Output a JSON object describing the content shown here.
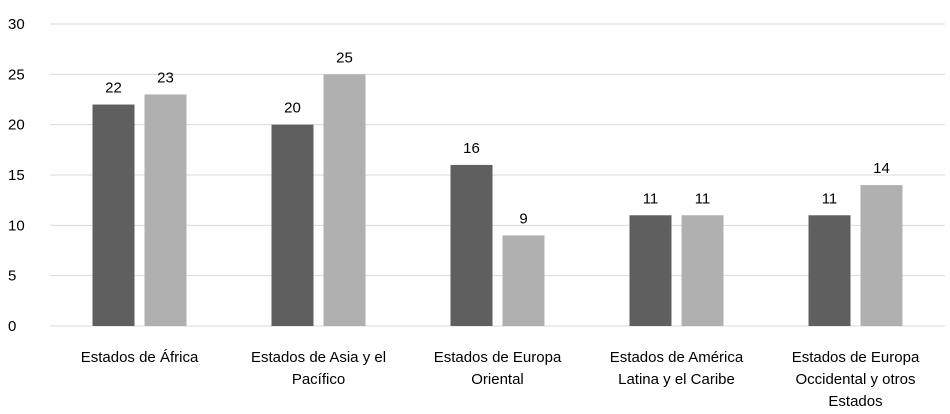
{
  "chart_data": {
    "type": "bar",
    "title": "",
    "xlabel": "",
    "ylabel": "",
    "categories": [
      [
        "Estados de África"
      ],
      [
        "Estados de Asia y el",
        "Pacífico"
      ],
      [
        "Estados de Europa",
        "Oriental"
      ],
      [
        "Estados de América",
        "Latina y el Caribe"
      ],
      [
        "Estados de Europa",
        "Occidental y otros",
        "Estados"
      ]
    ],
    "series": [
      {
        "values": [
          22,
          20,
          16,
          11,
          11
        ],
        "color": "#5f5f5f"
      },
      {
        "values": [
          23,
          25,
          9,
          11,
          14
        ],
        "color": "#b0b0b0"
      }
    ],
    "ylim": [
      0,
      30
    ],
    "yticks": [
      0,
      5,
      10,
      15,
      20,
      25,
      30
    ],
    "grid": true,
    "legend": "none",
    "data_labels": true
  }
}
